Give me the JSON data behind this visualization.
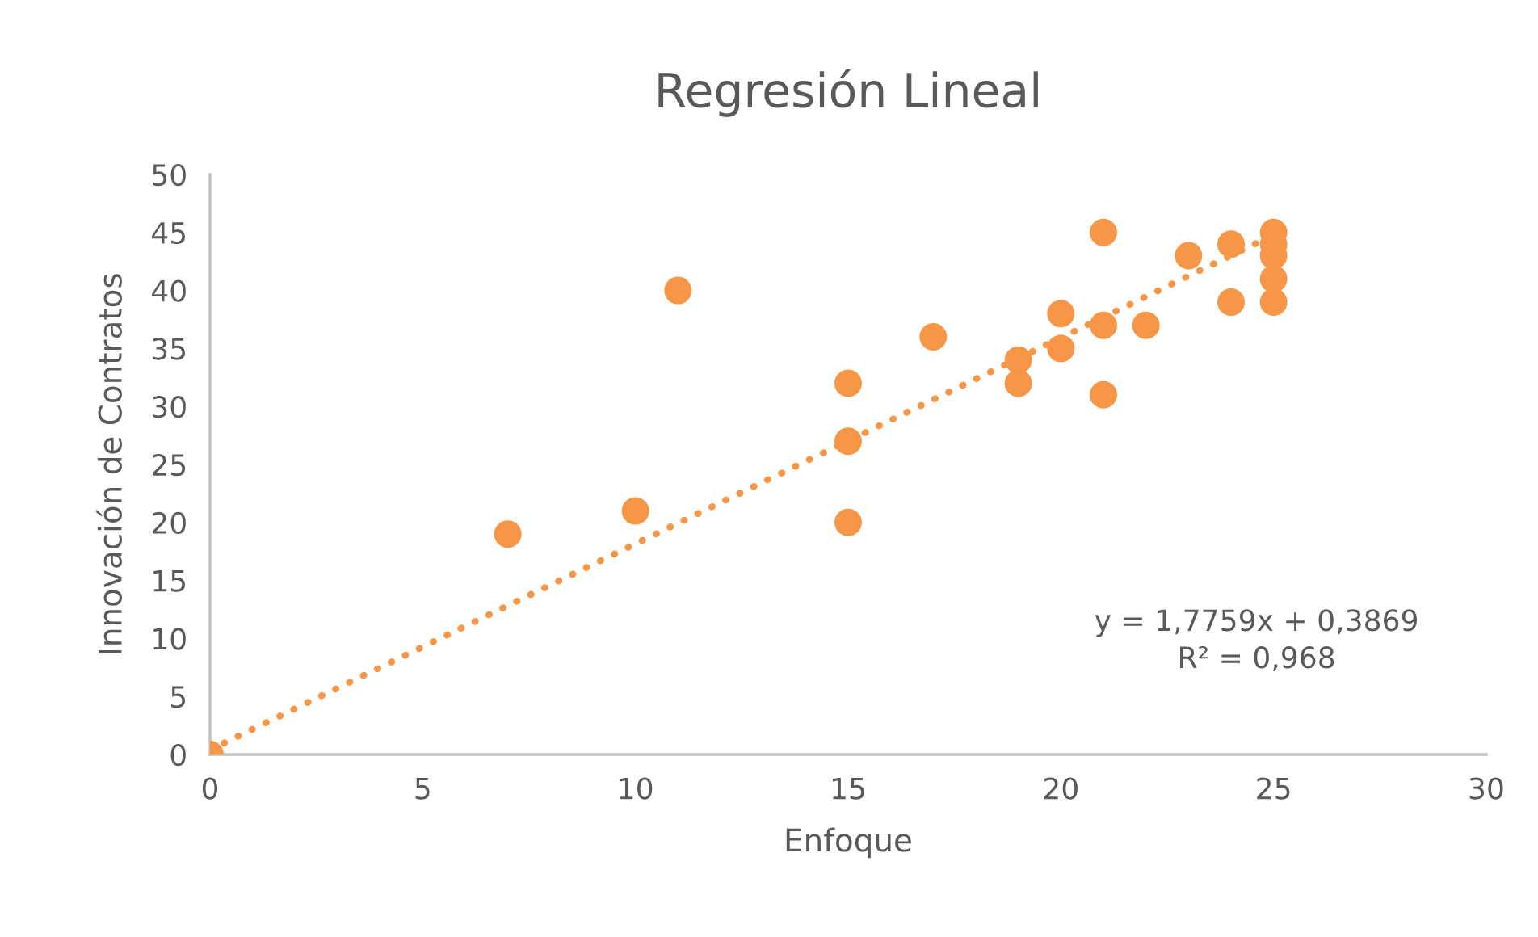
{
  "chart_data": {
    "type": "scatter",
    "title": "Regresión Lineal",
    "xlabel": "Enfoque",
    "ylabel": "Innovación de Contratos",
    "series": [
      {
        "marker": "circle",
        "color": "#f79646",
        "x": [
          0,
          7,
          10,
          11,
          15,
          15,
          15,
          17,
          19,
          19,
          20,
          20,
          21,
          21,
          21,
          22,
          23,
          24,
          24,
          25,
          25,
          25,
          25,
          25
        ],
        "values": [
          0,
          19,
          21,
          40,
          32,
          27,
          20,
          36,
          34,
          32,
          38,
          35,
          45,
          37,
          31,
          37,
          43,
          44,
          39,
          45,
          44,
          43,
          41,
          39
        ]
      },
      {
        "type": "line",
        "marker": "none",
        "color": "#f79646",
        "line_style": "dotted",
        "x": [
          0,
          25
        ],
        "values": [
          0.4,
          44.8
        ]
      }
    ],
    "xlim": [
      0,
      30
    ],
    "xticks": [
      0,
      5,
      10,
      15,
      20,
      25,
      30
    ],
    "ylim": [
      0,
      50
    ],
    "yticks": [
      0,
      5,
      10,
      15,
      20,
      25,
      30,
      35,
      40,
      45,
      50
    ],
    "grid": false,
    "legend": false,
    "annotations": [
      "y = 1,7759x + 0,3869",
      "R² = 0,968"
    ]
  }
}
